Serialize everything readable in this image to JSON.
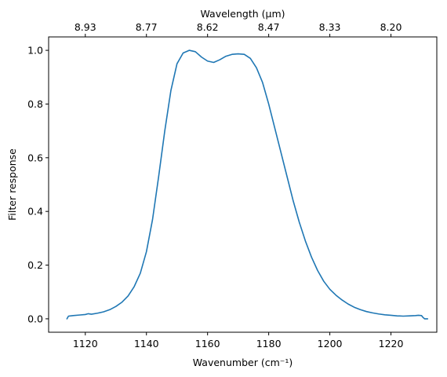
{
  "chart_data": {
    "type": "line",
    "title": "",
    "xlabel": "Wavenumber (cm⁻¹)",
    "ylabel": "Filter response",
    "top_xlabel": "Wavelength (μm)",
    "xlim": [
      1108,
      1235
    ],
    "ylim": [
      -0.05,
      1.05
    ],
    "grid": false,
    "legend": "none",
    "x_ticks": [
      1120,
      1140,
      1160,
      1180,
      1200,
      1220
    ],
    "y_ticks": [
      0.0,
      0.2,
      0.4,
      0.6,
      0.8,
      1.0
    ],
    "y_tick_labels": [
      "0.0",
      "0.2",
      "0.4",
      "0.6",
      "0.8",
      "1.0"
    ],
    "top_ticks": [
      {
        "label": "8.93",
        "wavenumber": 1120
      },
      {
        "label": "8.77",
        "wavenumber": 1140
      },
      {
        "label": "8.62",
        "wavenumber": 1160
      },
      {
        "label": "8.47",
        "wavenumber": 1180
      },
      {
        "label": "8.33",
        "wavenumber": 1200
      },
      {
        "label": "8.20",
        "wavenumber": 1220
      }
    ],
    "series": [
      {
        "color": "#1f77b4",
        "x": [
          1114,
          1114.5,
          1116,
          1118,
          1120,
          1121,
          1122,
          1124,
          1126,
          1128,
          1130,
          1132,
          1134,
          1136,
          1138,
          1140,
          1142,
          1144,
          1146,
          1148,
          1150,
          1152,
          1154,
          1156,
          1158,
          1160,
          1162,
          1164,
          1166,
          1168,
          1170,
          1172,
          1174,
          1176,
          1178,
          1180,
          1182,
          1184,
          1186,
          1188,
          1190,
          1192,
          1194,
          1196,
          1198,
          1200,
          1202,
          1204,
          1206,
          1208,
          1210,
          1212,
          1214,
          1216,
          1218,
          1220,
          1222,
          1224,
          1226,
          1228,
          1229,
          1230,
          1230.5,
          1231,
          1232
        ],
        "y": [
          0.0,
          0.01,
          0.012,
          0.014,
          0.016,
          0.019,
          0.017,
          0.021,
          0.026,
          0.034,
          0.046,
          0.062,
          0.085,
          0.12,
          0.17,
          0.25,
          0.37,
          0.53,
          0.7,
          0.85,
          0.95,
          0.99,
          1.0,
          0.995,
          0.975,
          0.96,
          0.955,
          0.965,
          0.978,
          0.985,
          0.987,
          0.985,
          0.97,
          0.935,
          0.88,
          0.8,
          0.71,
          0.62,
          0.53,
          0.44,
          0.36,
          0.29,
          0.23,
          0.18,
          0.14,
          0.11,
          0.088,
          0.07,
          0.055,
          0.043,
          0.034,
          0.027,
          0.022,
          0.018,
          0.015,
          0.013,
          0.011,
          0.01,
          0.011,
          0.012,
          0.013,
          0.012,
          0.005,
          0.0,
          0.0
        ]
      }
    ]
  }
}
